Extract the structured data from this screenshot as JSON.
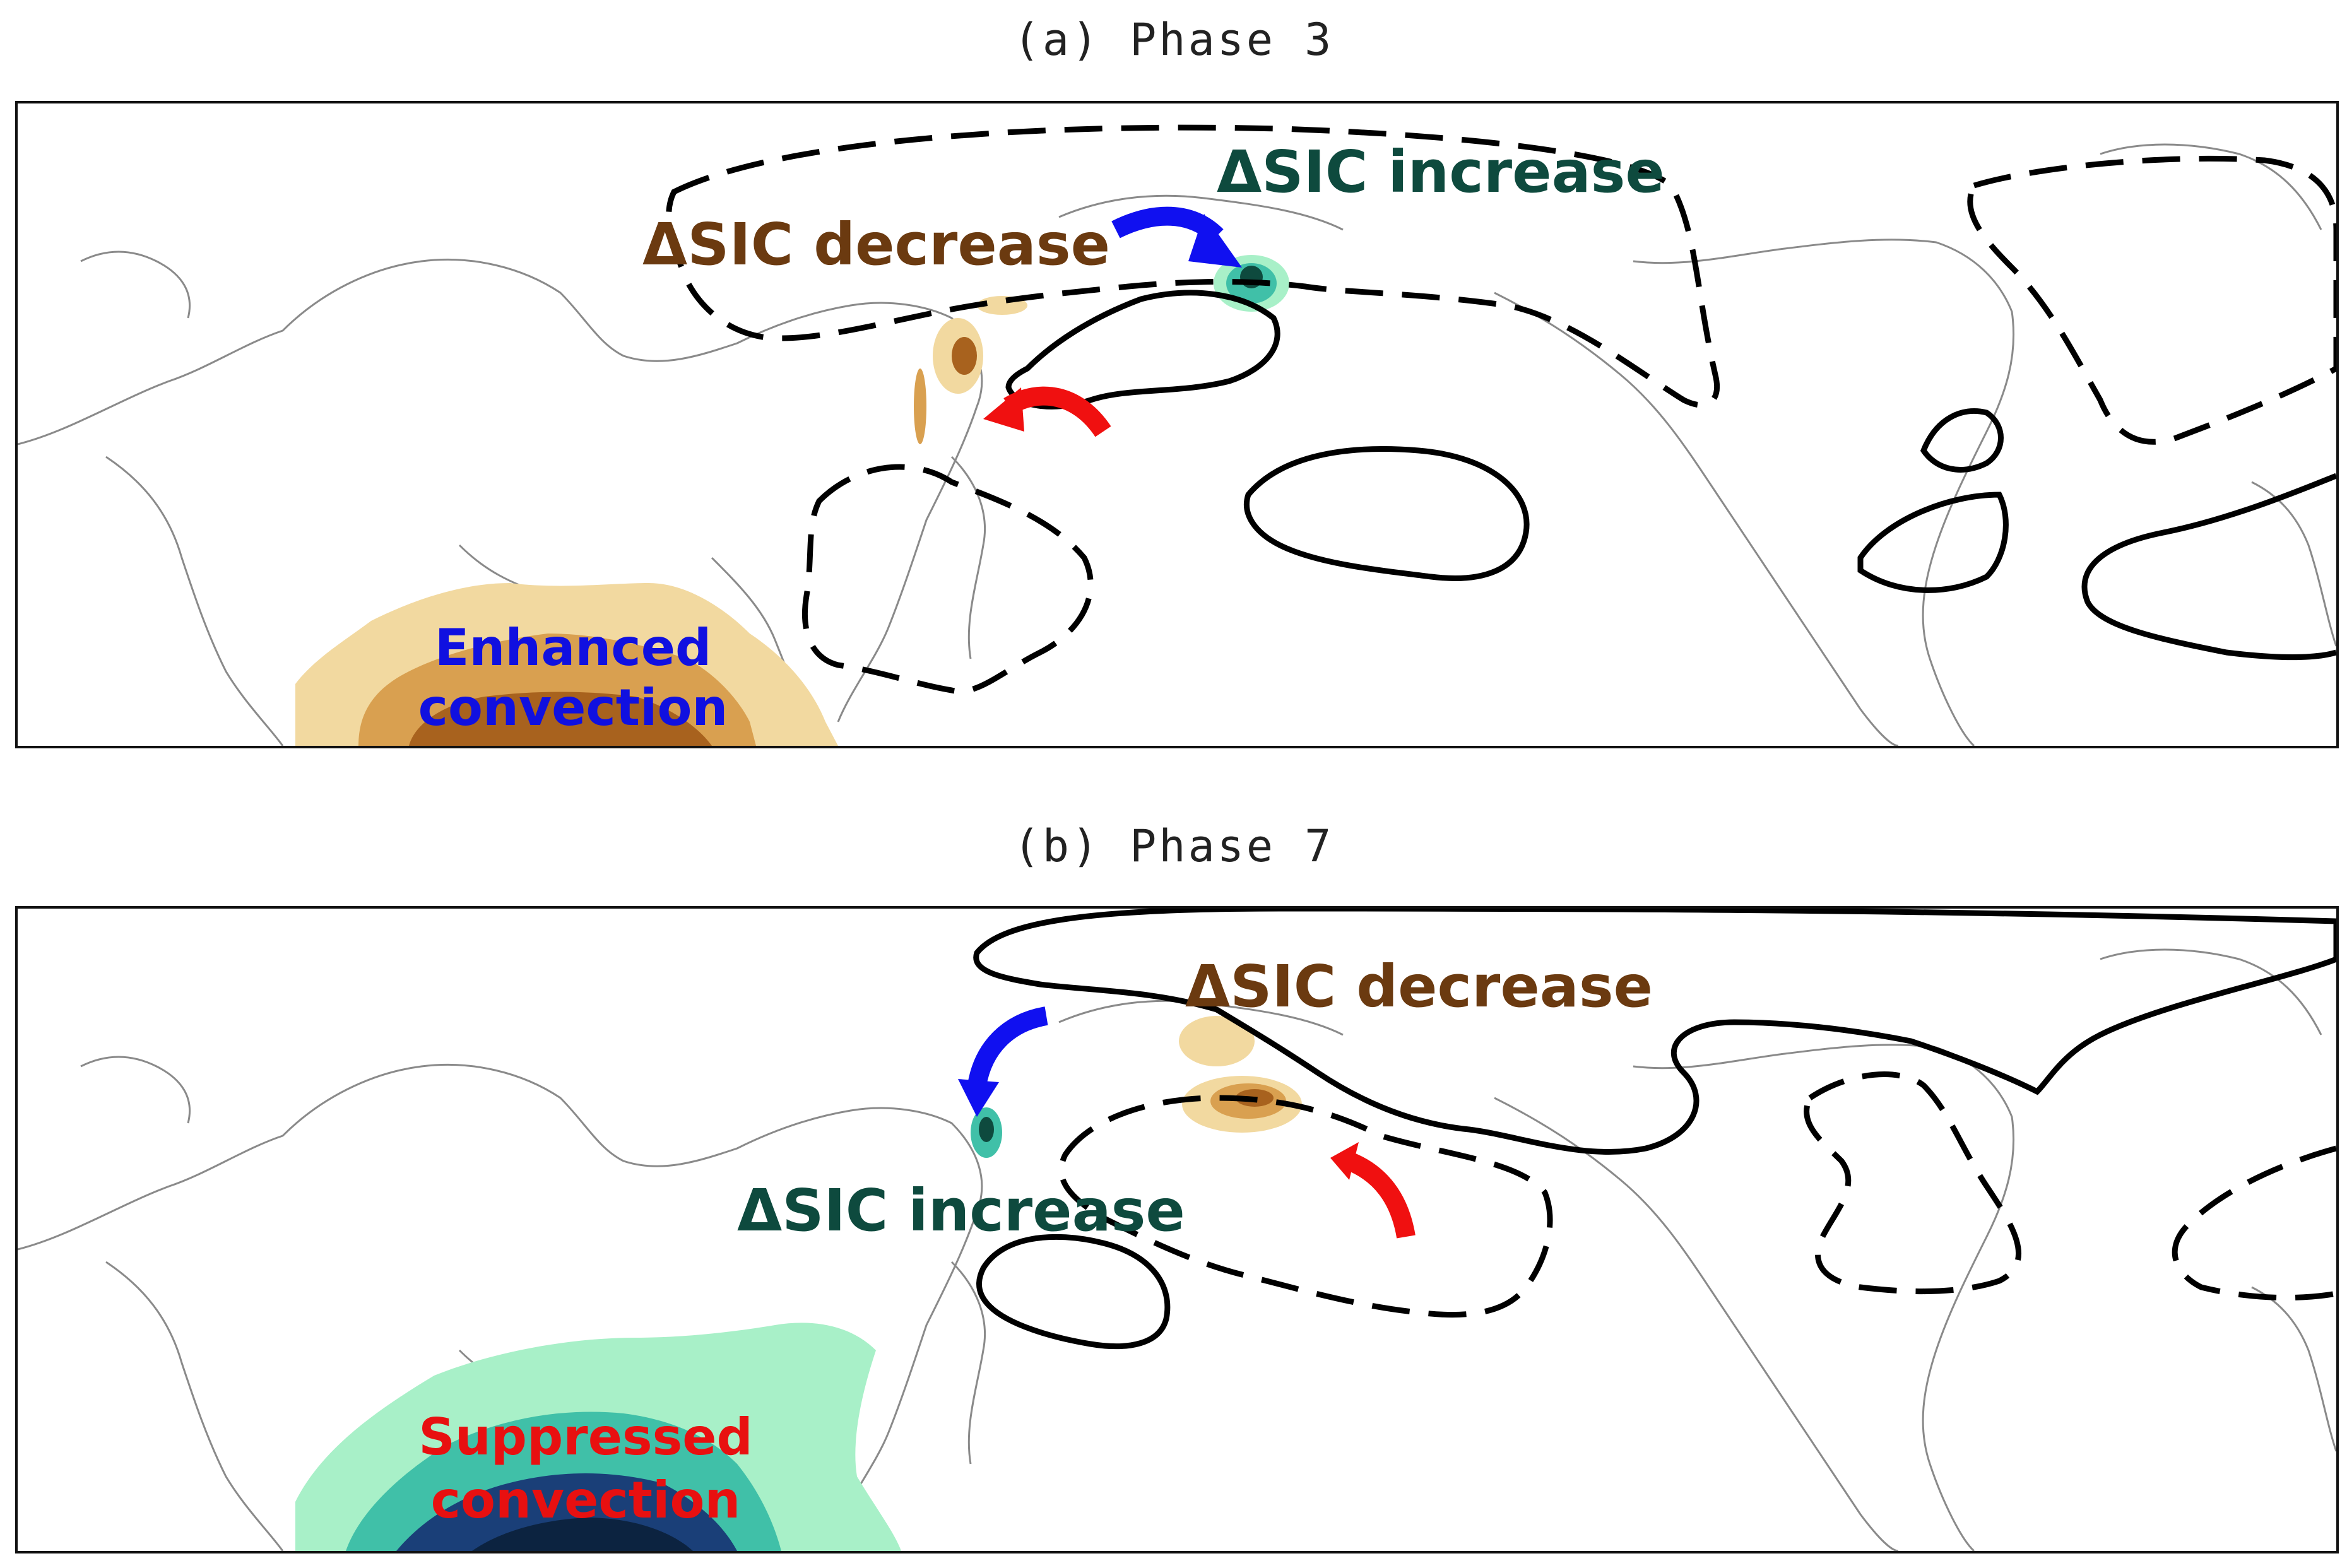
{
  "panels": [
    {
      "title": "(a) Phase 3",
      "labels": {
        "sic_increase": "ΔSIC increase",
        "sic_decrease": "ΔSIC decrease",
        "convection_line1": "Enhanced",
        "convection_line2": "convection"
      }
    },
    {
      "title": "(b) Phase 7",
      "labels": {
        "sic_increase": "ΔSIC increase",
        "sic_decrease": "ΔSIC decrease",
        "convection_line1": "Suppressed",
        "convection_line2": "convection"
      }
    }
  ],
  "colors": {
    "sic_increase_text": "#0e4a3e",
    "sic_decrease_text": "#6b3a10",
    "enhanced_text": "#1010e0",
    "suppressed_text": "#e81010",
    "arrow_blue": "#1010f0",
    "arrow_red": "#f01010",
    "brown_shade_light": "#f2d9a0",
    "brown_shade_mid": "#d9a050",
    "brown_shade_dark": "#a8621e",
    "green_shade_light": "#a8f0c8",
    "green_shade_mid": "#40c0a8",
    "blue_shade_dark": "#1a3f78",
    "blue_shade_darkest": "#0c2340"
  }
}
